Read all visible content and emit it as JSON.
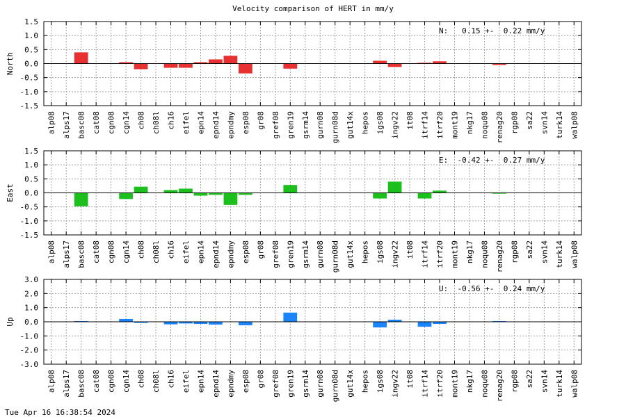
{
  "title": "Velocity comparison of HERT in mm/y",
  "timestamp": "Tue Apr 16 16:38:54 2024",
  "chart_data": [
    {
      "type": "bar",
      "ylabel": "North",
      "annotation": "N:   0.15 +-  0.22 mm/y",
      "color": "#e83030",
      "ylim": [
        -1.5,
        1.5
      ],
      "yticks": [
        -1.5,
        -1.0,
        -0.5,
        0.0,
        0.5,
        1.0,
        1.5
      ],
      "ytick_labels": [
        "-1.5",
        "-1.0",
        "-0.5",
        "0.0",
        "0.5",
        "1.0",
        "1.5"
      ],
      "grid": true,
      "categories": [
        "alp08",
        "alps17",
        "basc08",
        "cat08",
        "cgn08",
        "cgn14",
        "ch08",
        "ch08l",
        "ch16",
        "eifel",
        "epn14",
        "epnd14",
        "epndmy",
        "esp08",
        "gr08",
        "gref08",
        "gren19",
        "gsrm14",
        "gurn08",
        "gurn08d",
        "gut14x",
        "hepos",
        "igs08",
        "ingv22",
        "it08",
        "itrf14",
        "itrf20",
        "mont19",
        "nkg17",
        "noqu08",
        "renag20",
        "rgp08",
        "sa22",
        "svn14",
        "turk14",
        "walp08"
      ],
      "values": [
        null,
        null,
        0.4,
        null,
        null,
        0.05,
        -0.2,
        null,
        -0.15,
        -0.15,
        0.05,
        0.15,
        0.28,
        -0.35,
        null,
        null,
        -0.18,
        null,
        null,
        null,
        null,
        null,
        0.1,
        -0.12,
        null,
        0.03,
        0.08,
        null,
        null,
        null,
        -0.05,
        null,
        null,
        null,
        null,
        null
      ]
    },
    {
      "type": "bar",
      "ylabel": "East",
      "annotation": "E:  -0.42 +-  0.27 mm/y",
      "color": "#1cbf1c",
      "ylim": [
        -1.5,
        1.5
      ],
      "yticks": [
        -1.5,
        -1.0,
        -0.5,
        0.0,
        0.5,
        1.0,
        1.5
      ],
      "ytick_labels": [
        "-1.5",
        "-1.0",
        "-0.5",
        "0.0",
        "0.5",
        "1.0",
        "1.5"
      ],
      "grid": true,
      "categories": [
        "alp08",
        "alps17",
        "basc08",
        "cat08",
        "cgn08",
        "cgn14",
        "ch08",
        "ch08l",
        "ch16",
        "eifel",
        "epn14",
        "epnd14",
        "epndmy",
        "esp08",
        "gr08",
        "gref08",
        "gren19",
        "gsrm14",
        "gurn08",
        "gurn08d",
        "gut14x",
        "hepos",
        "igs08",
        "ingv22",
        "it08",
        "itrf14",
        "itrf20",
        "mont19",
        "nkg17",
        "noqu08",
        "renag20",
        "rgp08",
        "sa22",
        "svn14",
        "turk14",
        "walp08"
      ],
      "values": [
        null,
        null,
        -0.48,
        null,
        null,
        -0.22,
        0.22,
        null,
        0.1,
        0.15,
        -0.1,
        -0.07,
        -0.43,
        -0.07,
        null,
        null,
        0.28,
        null,
        null,
        null,
        null,
        null,
        -0.2,
        0.4,
        null,
        -0.2,
        0.08,
        null,
        null,
        null,
        -0.03,
        null,
        null,
        null,
        null,
        null
      ]
    },
    {
      "type": "bar",
      "ylabel": "Up",
      "annotation": "U:  -0.56 +-  0.24 mm/y",
      "color": "#1a85ff",
      "ylim": [
        -3.0,
        3.0
      ],
      "yticks": [
        -3.0,
        -2.0,
        -1.0,
        0.0,
        1.0,
        2.0,
        3.0
      ],
      "ytick_labels": [
        "-3.0",
        "-2.0",
        "-1.0",
        "0.0",
        "1.0",
        "2.0",
        "3.0"
      ],
      "grid": true,
      "categories": [
        "alp08",
        "alps17",
        "basc08",
        "cat08",
        "cgn08",
        "cgn14",
        "ch08",
        "ch08l",
        "ch16",
        "eifel",
        "epn14",
        "epnd14",
        "epndmy",
        "esp08",
        "gr08",
        "gref08",
        "gren19",
        "gsrm14",
        "gurn08",
        "gurn08d",
        "gut14x",
        "hepos",
        "igs08",
        "ingv22",
        "it08",
        "itrf14",
        "itrf20",
        "mont19",
        "nkg17",
        "noqu08",
        "renag20",
        "rgp08",
        "sa22",
        "svn14",
        "turk14",
        "walp08"
      ],
      "values": [
        null,
        null,
        0.05,
        null,
        null,
        0.2,
        -0.08,
        null,
        -0.18,
        -0.12,
        -0.15,
        -0.2,
        null,
        -0.25,
        null,
        null,
        0.65,
        null,
        null,
        null,
        null,
        null,
        -0.4,
        0.15,
        null,
        -0.35,
        -0.15,
        null,
        null,
        null,
        0.05,
        null,
        null,
        null,
        null,
        null
      ]
    }
  ]
}
